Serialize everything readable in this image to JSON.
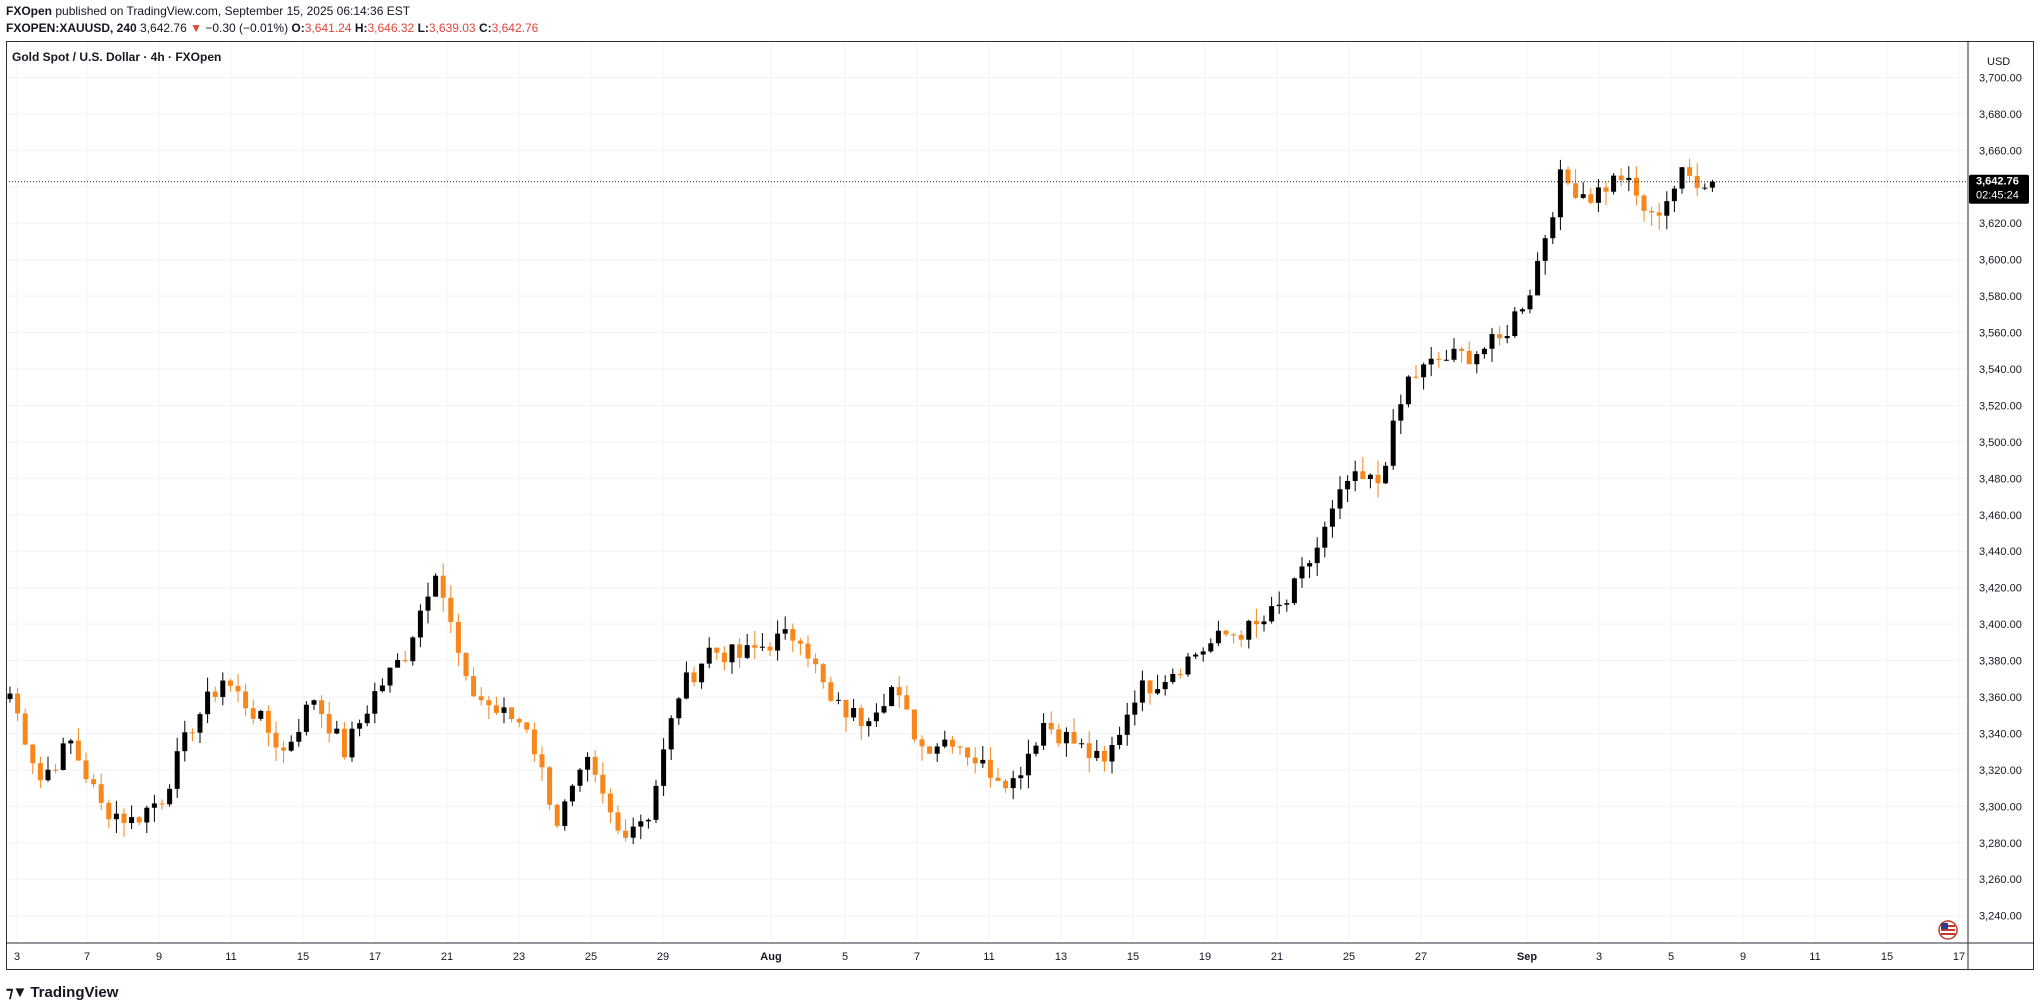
{
  "header": {
    "publisher": "FXOpen",
    "published_text": "published on TradingView.com, September 15, 2025 06:14:36 EST",
    "symbol": "FXOPEN:XAUUSD, 240",
    "last": "3,642.76",
    "change_arrow": "▼",
    "change": "−0.30 (−0.01%)",
    "o_label": "O:",
    "o_value": "3,641.24",
    "h_label": "H:",
    "h_value": "3,646.32",
    "l_label": "L:",
    "l_value": "3,639.03",
    "c_label": "C:",
    "c_value": "3,642.76"
  },
  "brand": {
    "logo_icon": "tradingview-logo-icon",
    "name": "TradingView"
  },
  "colors": {
    "up": "#000000",
    "down": "#f7861b",
    "grid": "#f0f3fa",
    "text": "#131722",
    "badge_bg": "#000000"
  },
  "chart_data": {
    "type": "candlestick",
    "title": "Gold Spot / U.S. Dollar · 4h · FXOpen",
    "currency_label": "USD",
    "ylim": [
      3225,
      3720
    ],
    "y_ticks": [
      3240,
      3260,
      3280,
      3300,
      3320,
      3340,
      3360,
      3380,
      3400,
      3420,
      3440,
      3460,
      3480,
      3500,
      3520,
      3540,
      3560,
      3580,
      3600,
      3620,
      3640,
      3660,
      3680,
      3700
    ],
    "x_ticks": [
      "3",
      "7",
      "9",
      "11",
      "15",
      "17",
      "21",
      "23",
      "25",
      "29",
      "Aug",
      "5",
      "7",
      "11",
      "13",
      "15",
      "19",
      "21",
      "25",
      "27",
      "Sep",
      "3",
      "5",
      "9",
      "11",
      "15",
      "17"
    ],
    "last_price": "3,642.76",
    "countdown": "02:45:24",
    "flag_icon": "us-flag-icon",
    "anchors": [
      [
        3352,
        3362
      ],
      [
        3330,
        3315
      ],
      [
        3333,
        3335
      ],
      [
        3310,
        3300
      ],
      [
        3290,
        3292
      ],
      [
        3318,
        3305
      ],
      [
        3335,
        3345
      ],
      [
        3360,
        3370
      ],
      [
        3345,
        3352
      ],
      [
        3325,
        3330
      ],
      [
        3352,
        3360
      ],
      [
        3316,
        3330
      ],
      [
        3330,
        3362
      ],
      [
        3390,
        3384
      ],
      [
        3436,
        3432
      ],
      [
        3386,
        3366
      ],
      [
        3368,
        3352
      ],
      [
        3325,
        3345
      ],
      [
        3305,
        3292
      ],
      [
        3335,
        3322
      ],
      [
        3278,
        3286
      ],
      [
        3306,
        3296
      ],
      [
        3352,
        3362
      ],
      [
        3370,
        3386
      ],
      [
        3375,
        3382
      ],
      [
        3378,
        3390
      ],
      [
        3405,
        3395
      ],
      [
        3376,
        3356
      ],
      [
        3352,
        3348
      ],
      [
        3360,
        3365
      ],
      [
        3340,
        3333
      ],
      [
        3345,
        3338
      ],
      [
        3343,
        3322
      ],
      [
        3325,
        3314
      ],
      [
        3345,
        3346
      ],
      [
        3335,
        3335
      ],
      [
        3330,
        3322
      ],
      [
        3366,
        3362
      ],
      [
        3368,
        3372
      ],
      [
        3380,
        3384
      ],
      [
        3395,
        3394
      ],
      [
        3405,
        3398
      ],
      [
        3422,
        3412
      ],
      [
        3458,
        3442
      ],
      [
        3484,
        3478
      ],
      [
        3496,
        3478
      ],
      [
        3540,
        3534
      ],
      [
        3575,
        3545
      ],
      [
        3542,
        3548
      ],
      [
        3558,
        3555
      ],
      [
        3592,
        3584
      ],
      [
        3640,
        3644
      ],
      [
        3665,
        3635
      ],
      [
        3645,
        3646
      ],
      [
        3625,
        3622
      ],
      [
        3650,
        3646
      ],
      [
        3643,
        3642.76
      ]
    ]
  }
}
